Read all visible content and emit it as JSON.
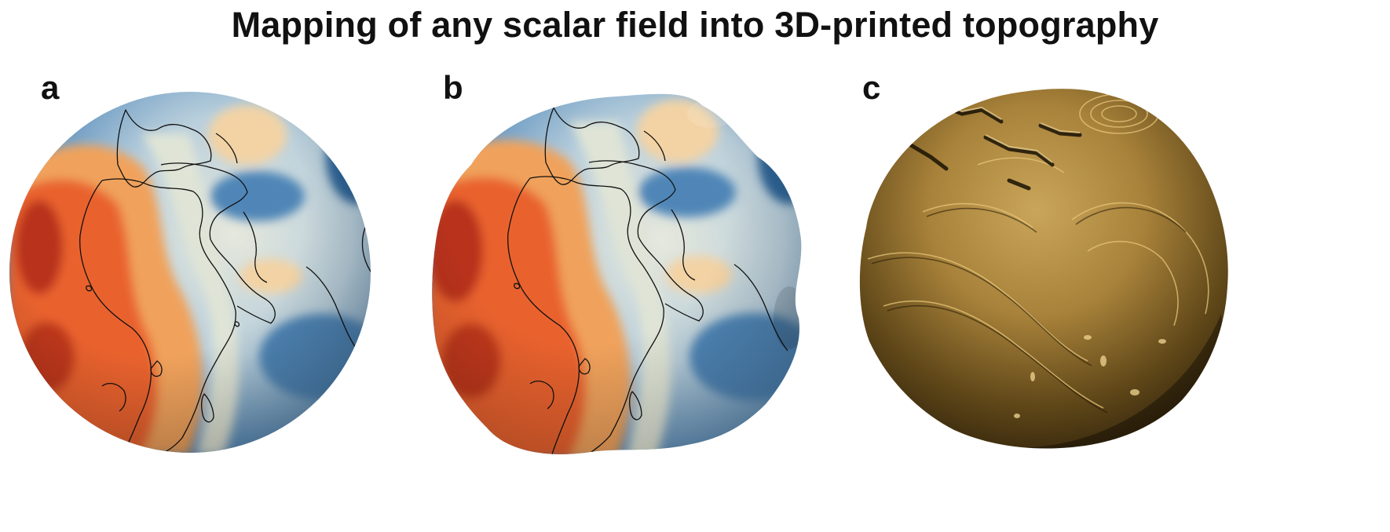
{
  "figure": {
    "title": "Mapping of any scalar field into 3D-printed topography"
  },
  "panels": [
    {
      "label": "a",
      "id": "sphere-colored"
    },
    {
      "label": "b",
      "id": "deformed-colored"
    },
    {
      "label": "c",
      "id": "printed-topography"
    }
  ],
  "colors": {
    "positive_dark": "#b8321c",
    "positive": "#e9622d",
    "positive_mid": "#f0a25b",
    "positive_light": "#f3d3a4",
    "neutral": "#d9e1d7",
    "negative_light": "#a9c3d8",
    "negative": "#5f92bf",
    "negative_dark": "#2f6597",
    "coastline": "#111111",
    "print_material": "#b08a3a"
  }
}
